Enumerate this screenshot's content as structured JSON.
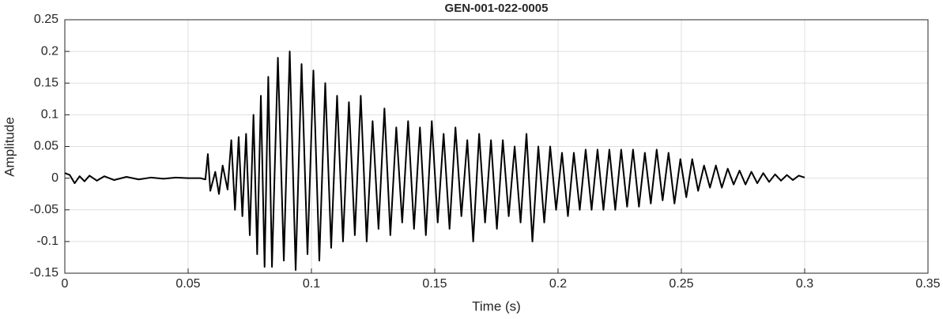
{
  "chart_data": {
    "type": "line",
    "title": "GEN-001-022-0005",
    "x_label": "Time (s)",
    "y_label": "Amplitude",
    "color": "#000000",
    "grid": true,
    "xlim": [
      0,
      0.35
    ],
    "xticks": [
      0,
      0.05,
      0.1,
      0.15,
      0.2,
      0.25,
      0.3,
      0.35
    ],
    "ylim": [
      -0.15,
      0.25
    ],
    "yticks": [
      -0.15,
      -0.1,
      -0.05,
      0,
      0.05,
      0.1,
      0.15,
      0.2,
      0.25
    ],
    "x": [
      0,
      0.002,
      0.004,
      0.006,
      0.008,
      0.01,
      0.013,
      0.016,
      0.02,
      0.025,
      0.03,
      0.035,
      0.04,
      0.045,
      0.05,
      0.055,
      0.057,
      0.058,
      0.059,
      0.061,
      0.0625,
      0.064,
      0.066,
      0.0675,
      0.069,
      0.0705,
      0.072,
      0.0735,
      0.075,
      0.0765,
      0.078,
      0.0795,
      0.081,
      0.0825,
      0.084,
      0.0864,
      0.0888,
      0.0912,
      0.0936,
      0.096,
      0.0984,
      0.1008,
      0.1032,
      0.1056,
      0.108,
      0.1104,
      0.1128,
      0.1152,
      0.1176,
      0.12,
      0.1224,
      0.1248,
      0.1272,
      0.1296,
      0.132,
      0.1344,
      0.1368,
      0.1392,
      0.1416,
      0.144,
      0.1464,
      0.1488,
      0.1512,
      0.1536,
      0.156,
      0.1584,
      0.1608,
      0.1632,
      0.1656,
      0.168,
      0.1704,
      0.1728,
      0.1752,
      0.1776,
      0.18,
      0.1824,
      0.1848,
      0.1872,
      0.1896,
      0.192,
      0.1944,
      0.1968,
      0.1992,
      0.2016,
      0.204,
      0.2064,
      0.2088,
      0.2112,
      0.2136,
      0.216,
      0.2184,
      0.2208,
      0.2232,
      0.2256,
      0.228,
      0.2304,
      0.2328,
      0.2352,
      0.2376,
      0.24,
      0.2424,
      0.2448,
      0.2472,
      0.2496,
      0.252,
      0.2544,
      0.2568,
      0.2592,
      0.2616,
      0.264,
      0.2664,
      0.2688,
      0.2712,
      0.2736,
      0.276,
      0.2784,
      0.2808,
      0.2832,
      0.2856,
      0.288,
      0.2904,
      0.2928,
      0.2952,
      0.2976,
      0.3
    ],
    "values": [
      0.008,
      0.005,
      -0.008,
      0.003,
      -0.005,
      0.004,
      -0.004,
      0.003,
      -0.003,
      0.002,
      -0.002,
      0.001,
      -0.001,
      0.001,
      0,
      0,
      -0.002,
      0.038,
      -0.02,
      0.01,
      -0.025,
      0.02,
      -0.018,
      0.06,
      -0.05,
      0.065,
      -0.06,
      0.07,
      -0.09,
      0.1,
      -0.12,
      0.13,
      -0.14,
      0.16,
      -0.14,
      0.19,
      -0.13,
      0.2,
      -0.145,
      0.18,
      -0.12,
      0.17,
      -0.13,
      0.15,
      -0.11,
      0.13,
      -0.1,
      0.12,
      -0.09,
      0.13,
      -0.1,
      0.09,
      -0.08,
      0.11,
      -0.09,
      0.08,
      -0.07,
      0.09,
      -0.08,
      0.08,
      -0.09,
      0.09,
      -0.07,
      0.07,
      -0.08,
      0.08,
      -0.06,
      0.06,
      -0.1,
      0.07,
      -0.07,
      0.06,
      -0.08,
      0.06,
      -0.06,
      0.05,
      -0.07,
      0.07,
      -0.1,
      0.05,
      -0.07,
      0.05,
      -0.05,
      0.04,
      -0.06,
      0.04,
      -0.05,
      0.045,
      -0.05,
      0.045,
      -0.05,
      0.045,
      -0.05,
      0.045,
      -0.045,
      0.045,
      -0.045,
      0.04,
      -0.04,
      0.045,
      -0.035,
      0.04,
      -0.04,
      0.03,
      -0.03,
      0.03,
      -0.02,
      0.02,
      -0.015,
      0.02,
      -0.015,
      0.015,
      -0.01,
      0.012,
      -0.01,
      0.01,
      -0.008,
      0.008,
      -0.006,
      0.006,
      -0.004,
      0.005,
      -0.003,
      0.004,
      0.001
    ]
  }
}
